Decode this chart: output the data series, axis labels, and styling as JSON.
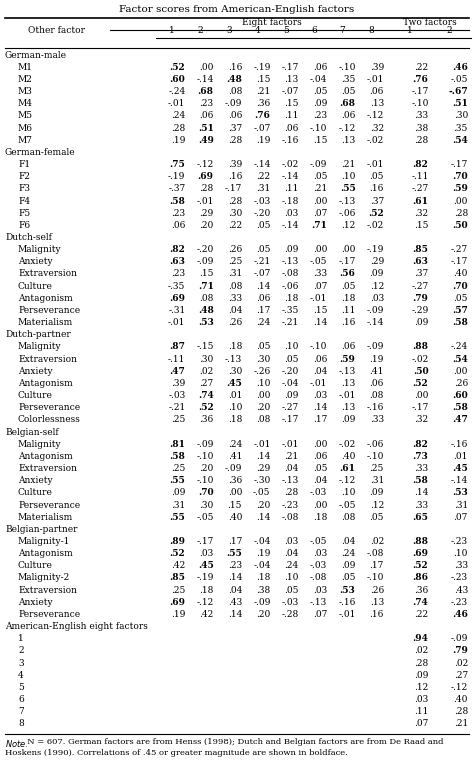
{
  "title": "Factor scores from American-English factors",
  "col_labels": [
    "1",
    "2",
    "3",
    "4",
    "5",
    "6",
    "7",
    "8",
    "1",
    "2"
  ],
  "bold_threshold": 0.45,
  "bg_color": "#ffffff",
  "font_size": 6.5,
  "sections": [
    {
      "name": "German-male",
      "rows": [
        [
          "M1",
          ".52",
          ".00",
          ".16",
          "-.19",
          "-.17",
          ".06",
          "-.10",
          ".39",
          ".22",
          ".46"
        ],
        [
          "M2",
          ".60",
          "-.14",
          ".48",
          ".15",
          ".13",
          "-.04",
          ".35",
          "-.01",
          ".76",
          "-.05"
        ],
        [
          "M3",
          "-.24",
          ".68",
          ".08",
          ".21",
          "-.07",
          ".05",
          ".05",
          ".06",
          "-.17",
          "-.67"
        ],
        [
          "M4",
          "-.01",
          ".23",
          "-.09",
          ".36",
          ".15",
          ".09",
          ".68",
          ".13",
          "-.10",
          ".51"
        ],
        [
          "M5",
          ".24",
          ".06",
          ".06",
          ".76",
          ".11",
          ".23",
          ".06",
          "-.12",
          ".33",
          ".30"
        ],
        [
          "M6",
          ".28",
          ".51",
          ".37",
          "-.07",
          ".06",
          "-.10",
          "-.12",
          ".32",
          ".38",
          ".35"
        ],
        [
          "M7",
          ".19",
          ".49",
          ".28",
          ".19",
          "-.16",
          ".15",
          ".13",
          "-.02",
          ".28",
          ".54"
        ]
      ]
    },
    {
      "name": "German-female",
      "rows": [
        [
          "F1",
          ".75",
          "-.12",
          ".39",
          "-.14",
          "-.02",
          "-.09",
          ".21",
          "-.01",
          ".82",
          "-.17"
        ],
        [
          "F2",
          "-.19",
          ".69",
          ".16",
          ".22",
          "-.14",
          ".05",
          ".10",
          ".05",
          "-.11",
          ".70"
        ],
        [
          "F3",
          "-.37",
          ".28",
          "-.17",
          ".31",
          ".11",
          ".21",
          ".55",
          ".16",
          "-.27",
          ".59"
        ],
        [
          "F4",
          ".58",
          "-.01",
          ".28",
          "-.03",
          "-.18",
          ".00",
          "-.13",
          ".37",
          ".61",
          ".00"
        ],
        [
          "F5",
          ".23",
          ".29",
          ".30",
          "-.20",
          ".03",
          ".07",
          "-.06",
          ".52",
          ".32",
          ".28"
        ],
        [
          "F6",
          ".06",
          ".20",
          ".22",
          ".05",
          "-.14",
          ".71",
          ".12",
          "-.02",
          ".15",
          ".50"
        ]
      ]
    },
    {
      "name": "Dutch-self",
      "rows": [
        [
          "Malignity",
          ".82",
          "-.20",
          ".26",
          ".05",
          ".09",
          ".00",
          ".00",
          "-.19",
          ".85",
          "-.27"
        ],
        [
          "Anxiety",
          ".63",
          "-.09",
          ".25",
          "-.21",
          "-.13",
          "-.05",
          "-.17",
          ".29",
          ".63",
          "-.17"
        ],
        [
          "Extraversion",
          ".23",
          ".15",
          ".31",
          "-.07",
          "-.08",
          ".33",
          ".56",
          ".09",
          ".37",
          ".40"
        ],
        [
          "Culture",
          "-.35",
          ".71",
          ".08",
          ".14",
          "-.06",
          ".07",
          ".05",
          ".12",
          "-.27",
          ".70"
        ],
        [
          "Antagonism",
          ".69",
          ".08",
          ".33",
          ".06",
          ".18",
          "-.01",
          ".18",
          ".03",
          ".79",
          ".05"
        ],
        [
          "Perseverance",
          "-.31",
          ".48",
          ".04",
          ".17",
          "-.35",
          ".15",
          ".11",
          "-.09",
          "-.29",
          ".57"
        ],
        [
          "Materialism",
          "-.01",
          ".53",
          ".26",
          ".24",
          "-.21",
          ".14",
          ".16",
          "-.14",
          ".09",
          ".58"
        ]
      ]
    },
    {
      "name": "Dutch-partner",
      "rows": [
        [
          "Malignity",
          ".87",
          "-.15",
          ".18",
          ".05",
          ".10",
          "-.10",
          ".06",
          "-.09",
          ".88",
          "-.24"
        ],
        [
          "Extraversion",
          "-.11",
          ".30",
          "-.13",
          ".30",
          ".05",
          ".06",
          ".59",
          ".19",
          "-.02",
          ".54"
        ],
        [
          "Anxiety",
          ".47",
          ".02",
          ".30",
          "-.26",
          "-.20",
          ".04",
          "-.13",
          ".41",
          ".50",
          ".00"
        ],
        [
          "Antagonism",
          ".39",
          ".27",
          ".45",
          ".10",
          "-.04",
          "-.01",
          ".13",
          ".06",
          ".52",
          ".26"
        ],
        [
          "Culture",
          "-.03",
          ".74",
          ".01",
          ".00",
          ".09",
          ".03",
          "-.01",
          ".08",
          ".00",
          ".60"
        ],
        [
          "Perseverance",
          "-.21",
          ".52",
          ".10",
          ".20",
          "-.27",
          ".14",
          ".13",
          "-.16",
          "-.17",
          ".58"
        ],
        [
          "Colorlessness",
          ".25",
          ".36",
          ".18",
          ".08",
          "-.17",
          ".17",
          ".09",
          ".33",
          ".32",
          ".47"
        ]
      ]
    },
    {
      "name": "Belgian-self",
      "rows": [
        [
          "Malignity",
          ".81",
          "-.09",
          ".24",
          "-.01",
          "-.01",
          ".00",
          "-.02",
          "-.06",
          ".82",
          "-.16"
        ],
        [
          "Antagonism",
          ".58",
          "-.10",
          ".41",
          ".14",
          ".21",
          ".06",
          ".40",
          "-.10",
          ".73",
          ".01"
        ],
        [
          "Extraversion",
          ".25",
          ".20",
          "-.09",
          ".29",
          ".04",
          ".05",
          ".61",
          ".25",
          ".33",
          ".45"
        ],
        [
          "Anxiety",
          ".55",
          "-.10",
          ".36",
          "-.30",
          "-.13",
          ".04",
          "-.12",
          ".31",
          ".58",
          "-.14"
        ],
        [
          "Culture",
          ".09",
          ".70",
          ".00",
          "-.05",
          ".28",
          "-.03",
          ".10",
          ".09",
          ".14",
          ".53"
        ],
        [
          "Perseverance",
          ".31",
          ".30",
          ".15",
          ".20",
          "-.23",
          ".00",
          "-.05",
          ".12",
          ".33",
          ".31"
        ],
        [
          "Materialism",
          ".55",
          "-.05",
          ".40",
          ".14",
          "-.08",
          ".18",
          ".08",
          ".05",
          ".65",
          ".07"
        ]
      ]
    },
    {
      "name": "Belgian-partner",
      "rows": [
        [
          "Malignity-1",
          ".89",
          "-.17",
          ".17",
          "-.04",
          ".03",
          "-.05",
          ".04",
          ".02",
          ".88",
          "-.23"
        ],
        [
          "Antagonism",
          ".52",
          ".03",
          ".55",
          ".19",
          ".04",
          ".03",
          ".24",
          "-.08",
          ".69",
          ".10"
        ],
        [
          "Culture",
          ".42",
          ".45",
          ".23",
          "-.04",
          ".24",
          "-.03",
          ".09",
          ".17",
          ".52",
          ".33"
        ],
        [
          "Malignity-2",
          ".85",
          "-.19",
          ".14",
          ".18",
          ".10",
          "-.08",
          ".05",
          "-.10",
          ".86",
          "-.23"
        ],
        [
          "Extraversion",
          ".25",
          ".18",
          ".04",
          ".38",
          ".05",
          ".03",
          ".53",
          ".26",
          ".36",
          ".43"
        ],
        [
          "Anxiety",
          ".69",
          "-.12",
          ".43",
          "-.09",
          "-.03",
          "-.13",
          "-.16",
          ".13",
          ".74",
          "-.23"
        ],
        [
          "Perseverance",
          ".19",
          ".42",
          ".14",
          ".20",
          "-.28",
          ".07",
          "-.01",
          ".16",
          ".22",
          ".46"
        ]
      ]
    },
    {
      "name": "American-English eight factors",
      "rows": [
        [
          "1",
          "",
          "",
          "",
          "",
          "",
          "",
          "",
          "",
          ".94",
          "-.09"
        ],
        [
          "2",
          "",
          "",
          "",
          "",
          "",
          "",
          "",
          "",
          ".02",
          ".79"
        ],
        [
          "3",
          "",
          "",
          "",
          "",
          "",
          "",
          "",
          "",
          ".28",
          ".02"
        ],
        [
          "4",
          "",
          "",
          "",
          "",
          "",
          "",
          "",
          "",
          ".09",
          ".27"
        ],
        [
          "5",
          "",
          "",
          "",
          "",
          "",
          "",
          "",
          "",
          ".12",
          "-.12"
        ],
        [
          "6",
          "",
          "",
          "",
          "",
          "",
          "",
          "",
          "",
          ".03",
          ".40"
        ],
        [
          "7",
          "",
          "",
          "",
          "",
          "",
          "",
          "",
          "",
          ".11",
          ".28"
        ],
        [
          "8",
          "",
          "",
          "",
          "",
          "",
          "",
          "",
          "",
          ".07",
          ".21"
        ]
      ]
    }
  ],
  "note_italic": "Note.",
  "note_rest": "  N = 607. German factors are from Henss (1998); Dutch and Belgian factors are from De Raad and Hoskens (1990). Correlations of .45 or greater magnitude are shown in boldface."
}
